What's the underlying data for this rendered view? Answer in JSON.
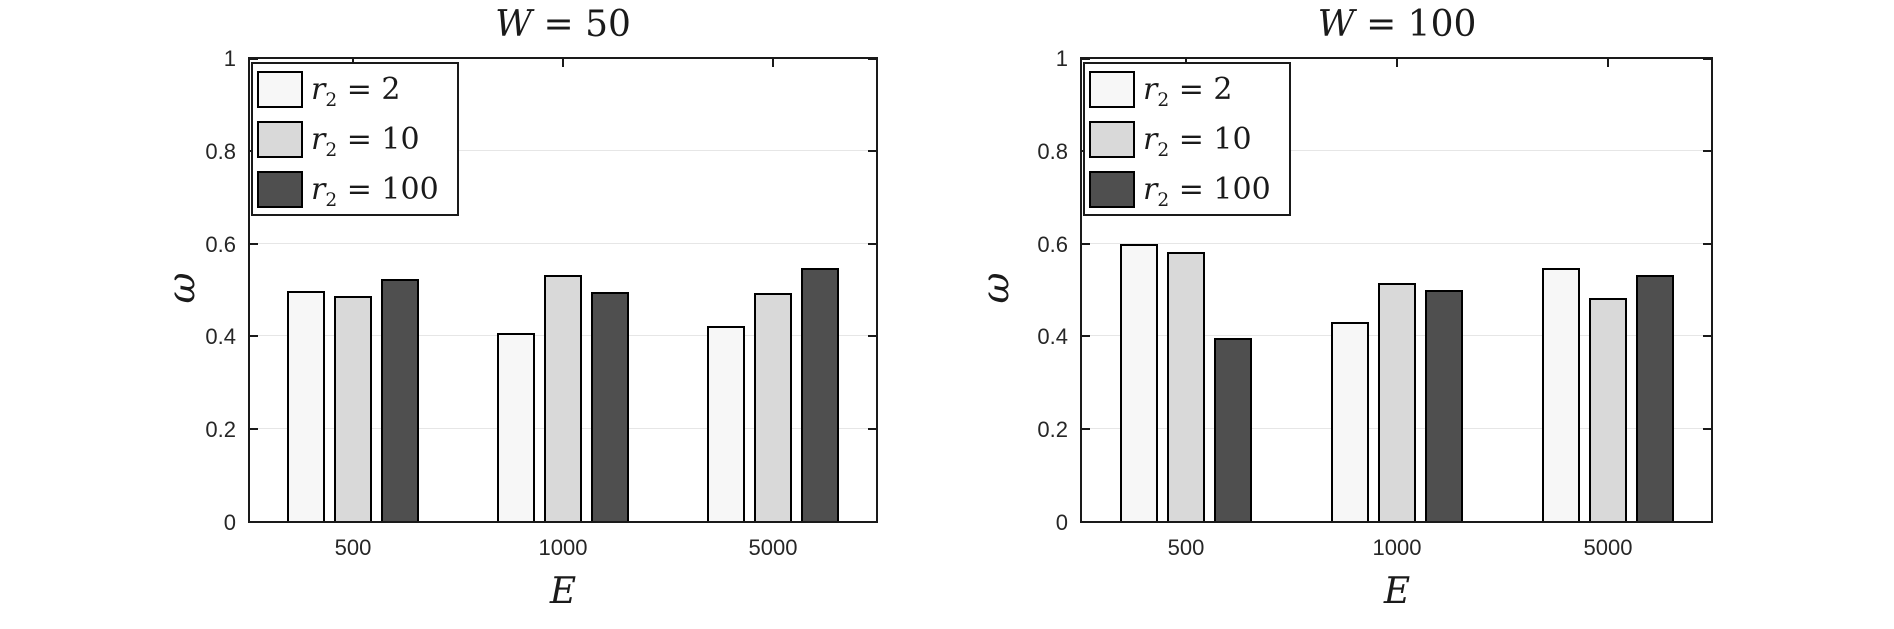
{
  "colors": {
    "background": "#ffffff",
    "bar_fills": [
      "#f7f7f7",
      "#d9d9d9",
      "#4f4f4f"
    ],
    "bar_edge": "#000000",
    "grid": "#e6e6e6",
    "spine": "#1a1a1a",
    "tick_label": "#262626",
    "text": "#1a1a1a"
  },
  "chart_data": [
    {
      "type": "bar",
      "title": {
        "text": "W = 50",
        "var": "W",
        "rhs": " = 50"
      },
      "xlabel": "E",
      "ylabel": "ω",
      "categories": [
        "500",
        "1000",
        "5000"
      ],
      "series": [
        {
          "name": "r2 = 2",
          "var": "r",
          "sub": "2",
          "rhs": " = 2",
          "color_index": 0,
          "values": [
            0.497,
            0.406,
            0.421
          ]
        },
        {
          "name": "r2 = 10",
          "var": "r",
          "sub": "2",
          "rhs": " = 10",
          "color_index": 1,
          "values": [
            0.487,
            0.532,
            0.494
          ]
        },
        {
          "name": "r2 = 100",
          "var": "r",
          "sub": "2",
          "rhs": " = 100",
          "color_index": 2,
          "values": [
            0.524,
            0.496,
            0.547
          ]
        }
      ],
      "ylim": [
        0,
        1
      ],
      "yticks": [
        {
          "value": 0.0,
          "label": "0"
        },
        {
          "value": 0.2,
          "label": "0.2"
        },
        {
          "value": 0.4,
          "label": "0.4"
        },
        {
          "value": 0.6,
          "label": "0.6"
        },
        {
          "value": 0.8,
          "label": "0.8"
        },
        {
          "value": 1.0,
          "label": "1"
        }
      ],
      "grid": "horizontal",
      "legend_position": "top-left"
    },
    {
      "type": "bar",
      "title": {
        "text": "W = 100",
        "var": "W",
        "rhs": " = 100"
      },
      "xlabel": "E",
      "ylabel": "ω",
      "categories": [
        "500",
        "1000",
        "5000"
      ],
      "series": [
        {
          "name": "r2 = 2",
          "var": "r",
          "sub": "2",
          "rhs": " = 2",
          "color_index": 0,
          "values": [
            0.599,
            0.431,
            0.547
          ]
        },
        {
          "name": "r2 = 10",
          "var": "r",
          "sub": "2",
          "rhs": " = 10",
          "color_index": 1,
          "values": [
            0.582,
            0.515,
            0.483
          ]
        },
        {
          "name": "r2 = 100",
          "var": "r",
          "sub": "2",
          "rhs": " = 100",
          "color_index": 2,
          "values": [
            0.397,
            0.5,
            0.532
          ]
        }
      ],
      "ylim": [
        0,
        1
      ],
      "yticks": [
        {
          "value": 0.0,
          "label": "0"
        },
        {
          "value": 0.2,
          "label": "0.2"
        },
        {
          "value": 0.4,
          "label": "0.4"
        },
        {
          "value": 0.6,
          "label": "0.6"
        },
        {
          "value": 0.8,
          "label": "0.8"
        },
        {
          "value": 1.0,
          "label": "1"
        }
      ],
      "grid": "horizontal",
      "legend_position": "top-left"
    }
  ]
}
